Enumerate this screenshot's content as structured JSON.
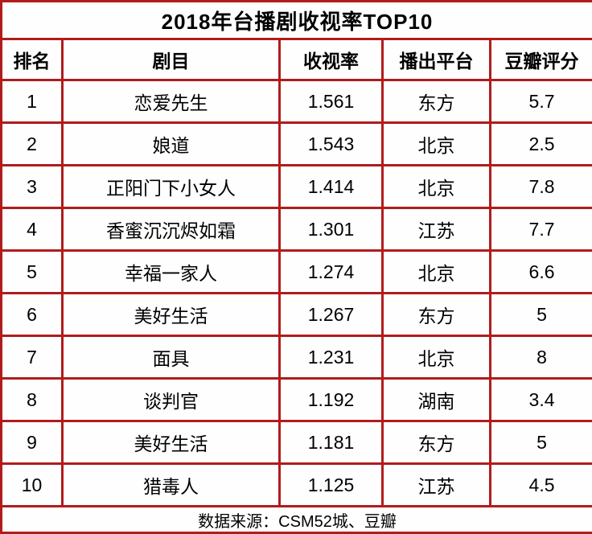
{
  "page": {
    "title": "2018年台播剧收视率TOP10",
    "footer": "数据来源：CSM52城、豆瓣"
  },
  "colors": {
    "border": "#b01c1c",
    "background": "#fefefe",
    "text": "#000000"
  },
  "table": {
    "headers": {
      "rank": "排名",
      "title": "剧目",
      "rating": "收视率",
      "platform": "播出平台",
      "douban": "豆瓣评分"
    },
    "rows": [
      {
        "rank": "1",
        "title": "恋爱先生",
        "rating": "1.561",
        "platform": "东方",
        "douban": "5.7"
      },
      {
        "rank": "2",
        "title": "娘道",
        "rating": "1.543",
        "platform": "北京",
        "douban": "2.5"
      },
      {
        "rank": "3",
        "title": "正阳门下小女人",
        "rating": "1.414",
        "platform": "北京",
        "douban": "7.8"
      },
      {
        "rank": "4",
        "title": "香蜜沉沉烬如霜",
        "rating": "1.301",
        "platform": "江苏",
        "douban": "7.7"
      },
      {
        "rank": "5",
        "title": "幸福一家人",
        "rating": "1.274",
        "platform": "北京",
        "douban": "6.6"
      },
      {
        "rank": "6",
        "title": "美好生活",
        "rating": "1.267",
        "platform": "东方",
        "douban": "5"
      },
      {
        "rank": "7",
        "title": "面具",
        "rating": "1.231",
        "platform": "北京",
        "douban": "8"
      },
      {
        "rank": "8",
        "title": "谈判官",
        "rating": "1.192",
        "platform": "湖南",
        "douban": "3.4"
      },
      {
        "rank": "9",
        "title": "美好生活",
        "rating": "1.181",
        "platform": "东方",
        "douban": "5"
      },
      {
        "rank": "10",
        "title": "猎毒人",
        "rating": "1.125",
        "platform": "江苏",
        "douban": "4.5"
      }
    ]
  },
  "chart_data": {
    "type": "table",
    "title": "2018年台播剧收视率TOP10",
    "columns": [
      "排名",
      "剧目",
      "收视率",
      "播出平台",
      "豆瓣评分"
    ],
    "rows": [
      [
        "1",
        "恋爱先生",
        1.561,
        "东方",
        5.7
      ],
      [
        "2",
        "娘道",
        1.543,
        "北京",
        2.5
      ],
      [
        "3",
        "正阳门下小女人",
        1.414,
        "北京",
        7.8
      ],
      [
        "4",
        "香蜜沉沉烬如霜",
        1.301,
        "江苏",
        7.7
      ],
      [
        "5",
        "幸福一家人",
        1.274,
        "北京",
        6.6
      ],
      [
        "6",
        "美好生活",
        1.267,
        "东方",
        5
      ],
      [
        "7",
        "面具",
        1.231,
        "北京",
        8
      ],
      [
        "8",
        "谈判官",
        1.192,
        "湖南",
        3.4
      ],
      [
        "9",
        "美好生活",
        1.181,
        "东方",
        5
      ],
      [
        "10",
        "猎毒人",
        1.125,
        "江苏",
        4.5
      ]
    ],
    "source": "数据来源：CSM52城、豆瓣"
  }
}
